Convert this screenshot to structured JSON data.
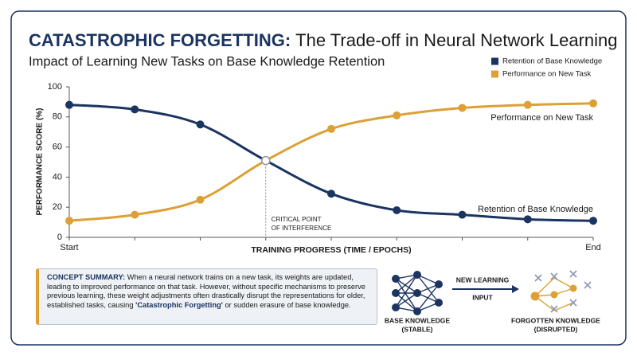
{
  "header": {
    "title_lead": "CATASTROPHIC FORGETTING:",
    "title": "The Trade-off in Neural Network Learning"
  },
  "chart_data": {
    "type": "line",
    "subtitle": "Impact of Learning New Tasks on Base Knowledge Retention",
    "x_label": "TRAINING PROGRESS (TIME / EPOCHS)",
    "y_label": "PERFORMANCE SCORE (%)",
    "categories": [
      "Start",
      null,
      null,
      null,
      null,
      null,
      null,
      null,
      "End"
    ],
    "series": [
      {
        "name": "Retention of Base Knowledge",
        "color": "#1c3461",
        "values": [
          88,
          85,
          75,
          51,
          29,
          18,
          15,
          12,
          11
        ]
      },
      {
        "name": "Performance on New Task",
        "color": "#dca035",
        "values": [
          11,
          15,
          25,
          51,
          72,
          81,
          86,
          88,
          89
        ]
      }
    ],
    "ylim": [
      0,
      100
    ],
    "yticks": [
      0,
      20,
      40,
      60,
      80,
      100
    ],
    "grid": false,
    "legend": "top-right",
    "annotations": {
      "critical_point": [
        "CRITICAL POINT",
        "OF INTERFERENCE"
      ],
      "line_labels": [
        "Retention of Base Knowledge",
        "Performance on New Task"
      ]
    }
  },
  "summary": {
    "label": "CONCEPT SUMMARY:",
    "text": [
      "When a neural network trains on a new task, its weights are updated, leading to improved performance on that task. However, without specific mechanisms to preserve previous learning, these weight adjustments often drastically disrupt the representations for older, established tasks, causing ",
      "'Catastrophic Forgetting'",
      " or sudden erasure of base knowledge."
    ]
  },
  "diagram": {
    "base_label": [
      "BASE KNOWLEDGE",
      "(STABLE)"
    ],
    "arrow_label": [
      "NEW LEARNING",
      "INPUT"
    ],
    "forgotten_label": [
      "FORGOTTEN KNOWLEDGE",
      "(DISRUPTED)"
    ]
  }
}
